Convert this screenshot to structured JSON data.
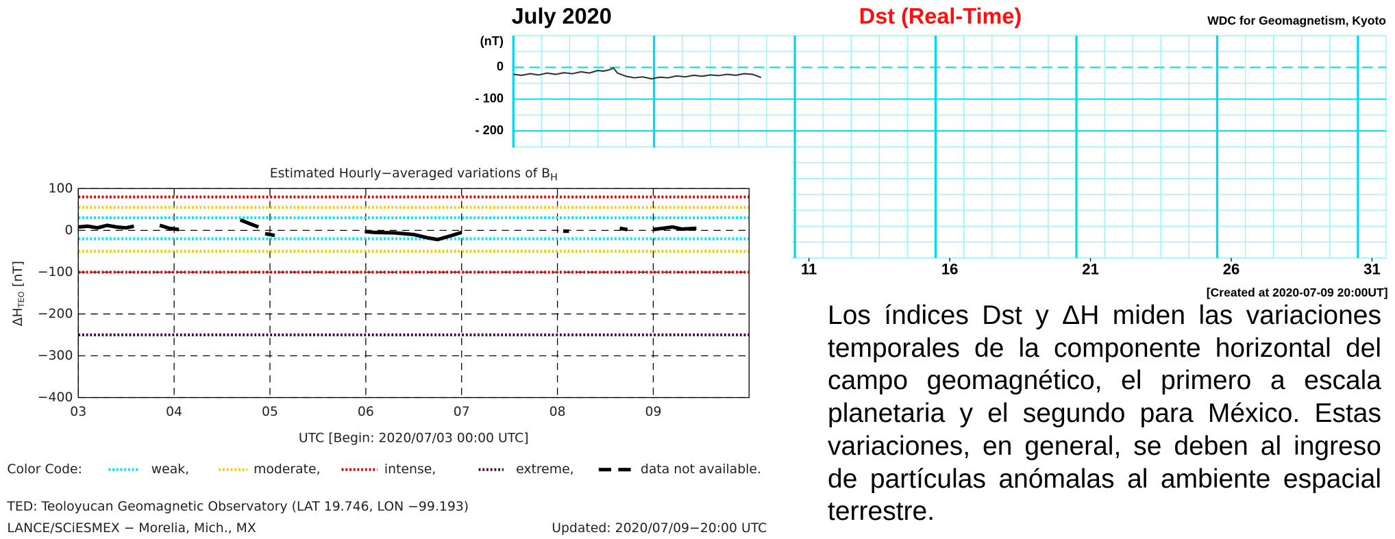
{
  "chart_data": [
    {
      "type": "line",
      "title": "July 2020",
      "subtitle": "Dst (Real-Time)",
      "source": "WDC for Geomagnetism, Kyoto",
      "ylabel": "(nT)",
      "note": "[Created at 2020-07-09 20:00UT]",
      "xlim": [
        0.5,
        31.5
      ],
      "xticks": [
        11,
        16,
        21,
        26,
        31
      ],
      "xgrid": [
        0.5,
        1.5,
        2.5,
        3.5,
        4.5,
        5.5,
        6.5,
        7.5,
        8.5,
        9.5,
        10.5,
        11.5,
        12.5,
        13.5,
        14.5,
        15.5,
        16.5,
        17.5,
        18.5,
        19.5,
        20.5,
        21.5,
        22.5,
        23.5,
        24.5,
        25.5,
        26.5,
        27.5,
        28.5,
        29.5,
        30.5,
        31.5
      ],
      "ylim": [
        -600,
        100
      ],
      "yticks": [
        0,
        {
          "value": -100,
          "label": "- 100"
        },
        {
          "value": -200,
          "label": "- 200"
        }
      ],
      "ygrid": [
        100,
        50,
        -50,
        -150,
        -250,
        -300,
        -350,
        -400,
        -450,
        -500,
        -550,
        -600
      ],
      "zero_dashed": true,
      "series": [
        {
          "color": "#333333",
          "x": [
            0.5,
            0.8,
            1.1,
            1.4,
            1.7,
            2.0,
            2.3,
            2.6,
            2.9,
            3.2,
            3.5,
            3.7,
            3.9,
            4.05,
            4.2,
            4.5,
            4.8,
            5.1,
            5.4,
            5.7,
            6.0,
            6.3,
            6.6,
            6.9,
            7.2,
            7.5,
            7.8,
            8.1,
            8.4,
            8.7,
            9.0,
            9.3
          ],
          "values": [
            -22,
            -25,
            -20,
            -24,
            -18,
            -22,
            -17,
            -20,
            -14,
            -18,
            -10,
            -12,
            -8,
            -2,
            -18,
            -28,
            -33,
            -30,
            -36,
            -31,
            -33,
            -27,
            -30,
            -25,
            -28,
            -24,
            -26,
            -22,
            -25,
            -20,
            -22,
            -32
          ]
        }
      ]
    },
    {
      "type": "line",
      "title": "Estimated Hourly−averaged variations of B",
      "title_sub": "H",
      "ylabel": "ΔH",
      "ylabel_sub": "TEO",
      "ylabel_unit": "[nT]",
      "xlabel": "UTC [Begin: 2020/07/03 00:00 UTC]",
      "xlim": [
        3,
        10
      ],
      "xticks": [
        {
          "value": 3,
          "label": "03"
        },
        {
          "value": 4,
          "label": "04"
        },
        {
          "value": 5,
          "label": "05"
        },
        {
          "value": 6,
          "label": "06"
        },
        {
          "value": 7,
          "label": "07"
        },
        {
          "value": 8,
          "label": "08"
        },
        {
          "value": 9,
          "label": "09"
        }
      ],
      "ylim": [
        -400,
        100
      ],
      "yticks": [
        100,
        0,
        {
          "value": -100,
          "label": "−100"
        },
        {
          "value": -200,
          "label": "−200"
        },
        {
          "value": -300,
          "label": "−300"
        },
        {
          "value": -400,
          "label": "−400"
        }
      ],
      "legend_title": "Color Code:",
      "thresholds": [
        {
          "name": "weak,",
          "color": "#00e5ee",
          "values": [
            30,
            -20
          ]
        },
        {
          "name": "moderate,",
          "color": "#f0d000",
          "values": [
            55,
            -50
          ]
        },
        {
          "name": "intense,",
          "color": "#e00000",
          "values": [
            80,
            -100
          ]
        },
        {
          "name": "extreme,",
          "color": "#4b0055",
          "values": [
            -250
          ]
        }
      ],
      "missing": {
        "name": "data not available.",
        "color": "#000000"
      },
      "series": [
        {
          "color": "#000000",
          "x": [
            3.0,
            3.1,
            3.2,
            3.3,
            3.4,
            3.5,
            3.58,
            null,
            3.85,
            3.95,
            4.05,
            null,
            4.69,
            4.8,
            4.88,
            null,
            4.95,
            5.05,
            null,
            5.99,
            6.1,
            6.3,
            6.5,
            6.65,
            6.75,
            6.9,
            7.0,
            null,
            8.06,
            8.12,
            null,
            8.65,
            8.73,
            null,
            9.0,
            9.1,
            9.2,
            9.3,
            9.45
          ],
          "values": [
            8,
            10,
            6,
            12,
            8,
            6,
            10,
            null,
            12,
            5,
            2,
            null,
            25,
            15,
            8,
            null,
            -8,
            -12,
            null,
            -3,
            -5,
            -6,
            -10,
            -18,
            -22,
            -12,
            -5,
            null,
            -2,
            -2,
            null,
            5,
            2,
            null,
            2,
            5,
            8,
            3,
            5
          ]
        }
      ]
    }
  ],
  "footer": {
    "station": "TED: Teoloyucan Geomagnetic Observatory (LAT  19.746, LON −99.193)",
    "institution": "LANCE/SCiESMEX − Morelia, Mich., MX",
    "updated": "Updated: 2020/07/09−20:00 UTC"
  },
  "paragraph": "Los índices Dst y ΔH miden las variaciones temporales de la componente horizontal del campo geomagnético, el primero a escala planetaria y el segundo para México. Estas variaciones, en general, se deben al ingreso de partículas anómalas al ambiente espacial terrestre."
}
